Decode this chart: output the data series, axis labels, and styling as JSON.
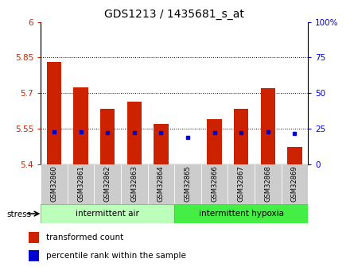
{
  "title": "GDS1213 / 1435681_s_at",
  "samples": [
    "GSM32860",
    "GSM32861",
    "GSM32862",
    "GSM32863",
    "GSM32864",
    "GSM32865",
    "GSM32866",
    "GSM32867",
    "GSM32868",
    "GSM32869"
  ],
  "bar_heights": [
    5.83,
    5.725,
    5.635,
    5.665,
    5.572,
    5.4,
    5.592,
    5.635,
    5.72,
    5.472
  ],
  "blue_dots": [
    5.538,
    5.537,
    5.535,
    5.535,
    5.535,
    5.515,
    5.535,
    5.535,
    5.537,
    5.532
  ],
  "bar_base": 5.4,
  "ylim_left": [
    5.4,
    6.0
  ],
  "ylim_right": [
    0,
    100
  ],
  "yticks_left": [
    5.4,
    5.55,
    5.7,
    5.85,
    6.0
  ],
  "yticks_right": [
    0,
    25,
    50,
    75,
    100
  ],
  "ytick_labels_left": [
    "5.4",
    "5.55",
    "5.7",
    "5.85",
    "6"
  ],
  "ytick_labels_right": [
    "0",
    "25",
    "50",
    "75",
    "100%"
  ],
  "hlines": [
    5.55,
    5.7,
    5.85
  ],
  "group1_label": "intermittent air",
  "group2_label": "intermittent hypoxia",
  "group1_color": "#bbffbb",
  "group2_color": "#44ee44",
  "bar_color": "#cc2200",
  "dot_color": "#0000cc",
  "stress_label": "stress",
  "legend_bar_label": "transformed count",
  "legend_dot_label": "percentile rank within the sample",
  "bar_width": 0.55,
  "left_color": "#cc2200",
  "right_color": "#0000cc",
  "bg_color": "#ffffff",
  "plot_bg": "#ffffff",
  "xtick_bg": "#cccccc"
}
